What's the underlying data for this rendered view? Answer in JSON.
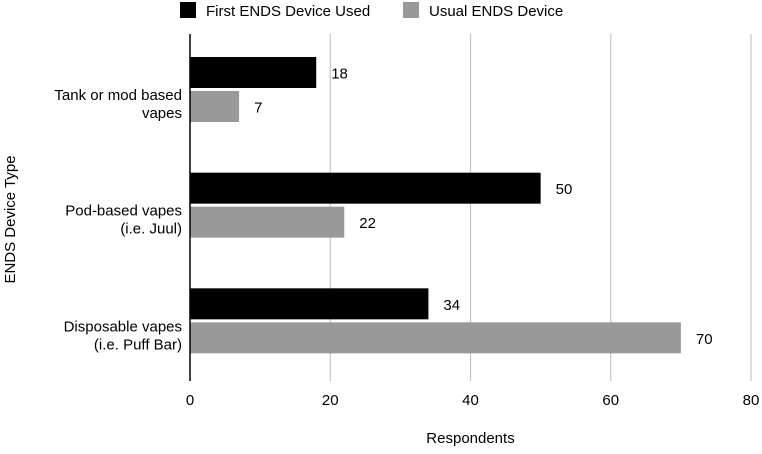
{
  "chart_data": {
    "type": "bar",
    "orientation": "horizontal",
    "categories": [
      [
        "Tank or mod based",
        "vapes"
      ],
      [
        "Pod-based vapes",
        "(i.e. Juul)"
      ],
      [
        "Disposable vapes",
        "(i.e. Puff Bar)"
      ]
    ],
    "series": [
      {
        "name": "First ENDS Device Used",
        "color": "#000000",
        "values": [
          18,
          50,
          34
        ]
      },
      {
        "name": "Usual ENDS Device",
        "color": "#999999",
        "values": [
          7,
          22,
          70
        ]
      }
    ],
    "xlabel": "Respondents",
    "ylabel": "ENDS Device Type",
    "xlim": [
      0,
      80
    ],
    "xticks": [
      0,
      20,
      40,
      60,
      80
    ],
    "grid": true,
    "legend_position": "top"
  }
}
